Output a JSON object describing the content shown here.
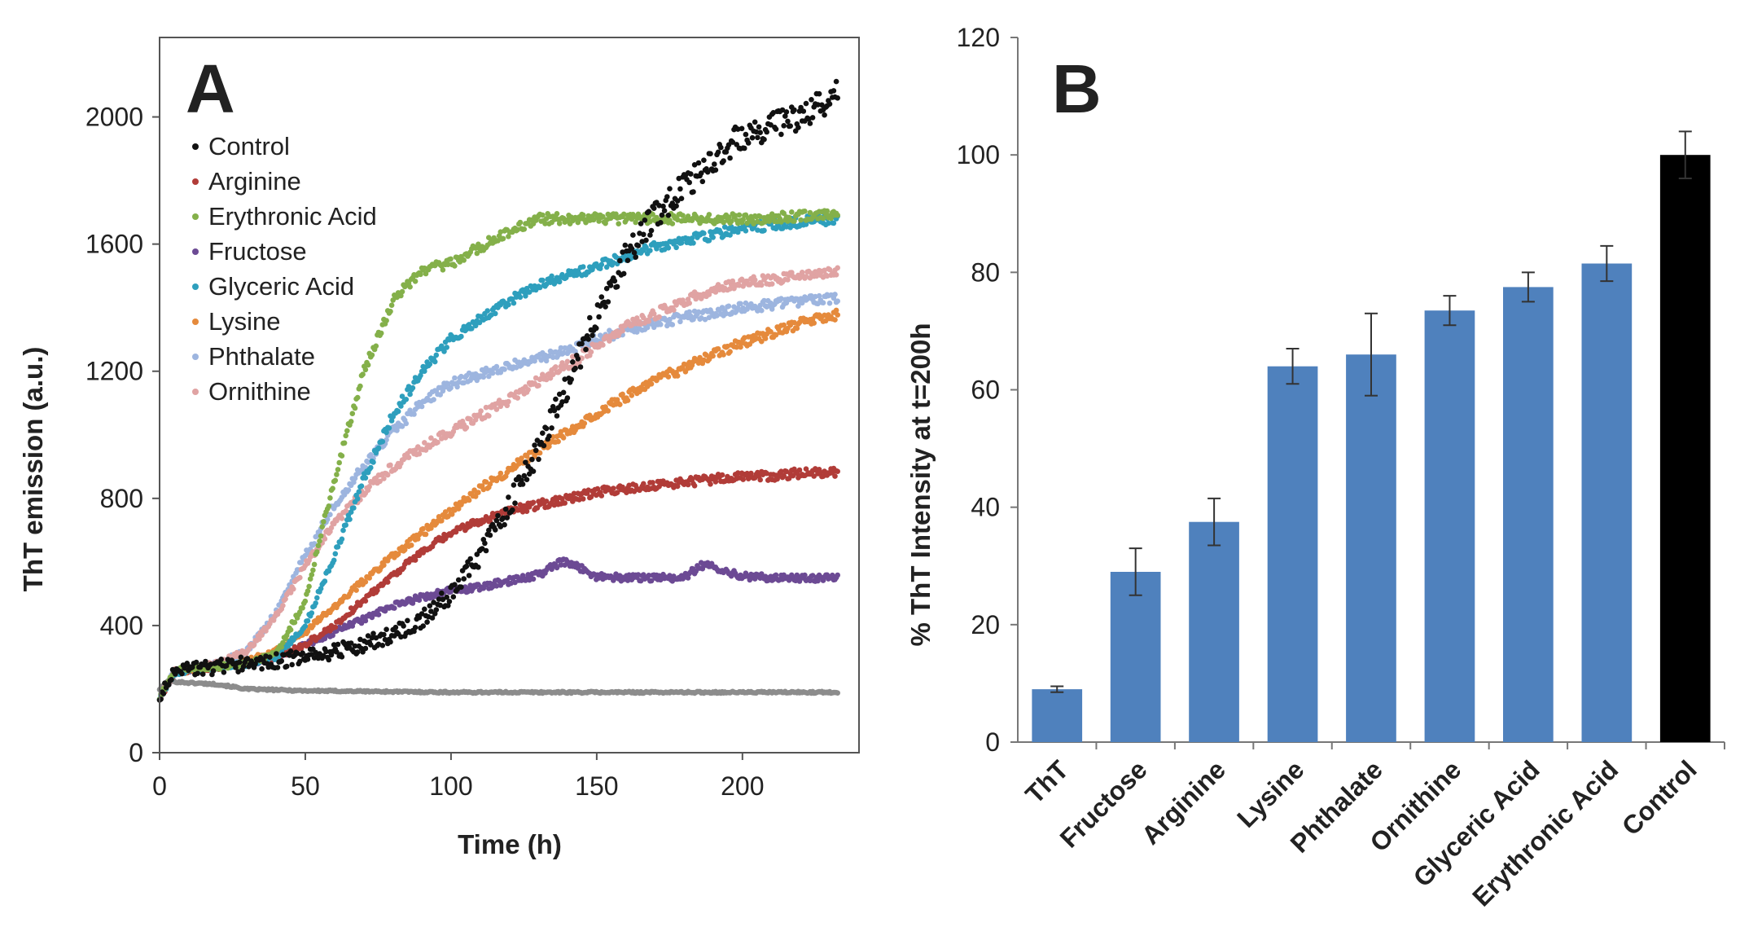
{
  "chart_data": [
    {
      "panel": "A",
      "type": "scatter",
      "panel_label": "A",
      "xlabel": "Time (h)",
      "ylabel": "ThT emission (a.u.)",
      "xlim": [
        0,
        240
      ],
      "ylim": [
        0,
        2250
      ],
      "xticks": [
        0,
        50,
        100,
        150,
        200
      ],
      "yticks": [
        0,
        400,
        800,
        1200,
        1600,
        2000
      ],
      "legend_position": "top-left",
      "series": [
        {
          "name": "Control",
          "color": "#111111",
          "x": [
            0,
            5,
            10,
            20,
            30,
            40,
            50,
            60,
            70,
            80,
            90,
            100,
            110,
            120,
            130,
            140,
            150,
            160,
            170,
            180,
            190,
            200,
            210,
            220,
            230,
            233
          ],
          "y": [
            170,
            250,
            260,
            270,
            280,
            290,
            300,
            320,
            340,
            370,
            420,
            500,
            620,
            780,
            950,
            1150,
            1380,
            1560,
            1690,
            1780,
            1870,
            1940,
            1970,
            2000,
            2060,
            2080
          ]
        },
        {
          "name": "Arginine",
          "color": "#b13c38",
          "x": [
            0,
            5,
            10,
            20,
            30,
            40,
            50,
            60,
            70,
            80,
            90,
            100,
            110,
            120,
            130,
            140,
            150,
            160,
            170,
            180,
            190,
            200,
            210,
            220,
            233
          ],
          "y": [
            170,
            250,
            260,
            270,
            280,
            300,
            340,
            400,
            480,
            560,
            630,
            690,
            730,
            760,
            780,
            800,
            820,
            830,
            840,
            850,
            860,
            870,
            870,
            880,
            880
          ]
        },
        {
          "name": "Erythronic Acid",
          "color": "#84b04a",
          "x": [
            0,
            5,
            10,
            20,
            30,
            40,
            50,
            60,
            70,
            80,
            90,
            100,
            110,
            120,
            130,
            140,
            150,
            160,
            170,
            180,
            190,
            200,
            210,
            220,
            233
          ],
          "y": [
            170,
            260,
            265,
            270,
            280,
            310,
            480,
            860,
            1200,
            1420,
            1520,
            1540,
            1590,
            1640,
            1680,
            1680,
            1680,
            1680,
            1680,
            1680,
            1680,
            1680,
            1680,
            1690,
            1690
          ]
        },
        {
          "name": "Fructose",
          "color": "#6c4a94",
          "x": [
            0,
            5,
            10,
            20,
            30,
            40,
            50,
            60,
            70,
            80,
            90,
            100,
            110,
            120,
            130,
            138,
            145,
            150,
            160,
            170,
            180,
            186,
            192,
            200,
            210,
            220,
            233
          ],
          "y": [
            170,
            250,
            260,
            270,
            280,
            300,
            340,
            380,
            420,
            460,
            490,
            510,
            520,
            540,
            560,
            600,
            580,
            555,
            550,
            550,
            550,
            590,
            580,
            555,
            550,
            550,
            550
          ]
        },
        {
          "name": "Glyceric Acid",
          "color": "#2e9fbd",
          "x": [
            0,
            5,
            10,
            20,
            30,
            40,
            50,
            60,
            70,
            80,
            90,
            100,
            110,
            120,
            130,
            140,
            150,
            160,
            170,
            180,
            190,
            200,
            210,
            220,
            233
          ],
          "y": [
            170,
            250,
            260,
            270,
            280,
            300,
            400,
            620,
            860,
            1060,
            1200,
            1300,
            1370,
            1420,
            1470,
            1500,
            1530,
            1560,
            1590,
            1610,
            1630,
            1650,
            1660,
            1670,
            1680
          ]
        },
        {
          "name": "Lysine",
          "color": "#e58a3c",
          "x": [
            0,
            5,
            10,
            20,
            30,
            40,
            50,
            60,
            70,
            80,
            90,
            100,
            110,
            120,
            130,
            140,
            150,
            160,
            170,
            180,
            190,
            200,
            210,
            220,
            233
          ],
          "y": [
            170,
            250,
            260,
            270,
            290,
            320,
            380,
            460,
            540,
            620,
            690,
            760,
            830,
            890,
            950,
            1010,
            1070,
            1120,
            1170,
            1210,
            1250,
            1290,
            1320,
            1350,
            1380
          ]
        },
        {
          "name": "Phthalate",
          "color": "#9db5df",
          "x": [
            0,
            5,
            10,
            20,
            30,
            40,
            50,
            60,
            70,
            80,
            90,
            100,
            110,
            120,
            130,
            140,
            150,
            160,
            170,
            180,
            190,
            200,
            210,
            220,
            233
          ],
          "y": [
            170,
            255,
            265,
            280,
            320,
            440,
            620,
            780,
            900,
            1010,
            1100,
            1160,
            1190,
            1220,
            1240,
            1270,
            1300,
            1330,
            1350,
            1370,
            1380,
            1400,
            1410,
            1420,
            1430
          ]
        },
        {
          "name": "Ornithine",
          "color": "#e0a3a3",
          "x": [
            0,
            5,
            10,
            20,
            30,
            40,
            50,
            60,
            70,
            80,
            90,
            100,
            110,
            120,
            130,
            140,
            150,
            160,
            170,
            180,
            190,
            200,
            210,
            220,
            233
          ],
          "y": [
            170,
            255,
            265,
            280,
            320,
            430,
            590,
            720,
            820,
            900,
            960,
            1010,
            1060,
            1110,
            1170,
            1220,
            1280,
            1340,
            1380,
            1420,
            1460,
            1480,
            1490,
            1500,
            1510
          ]
        },
        {
          "name": "ThT",
          "color": "#8c8c8c",
          "in_legend": false,
          "x": [
            0,
            3,
            10,
            20,
            30,
            50,
            100,
            150,
            200,
            233
          ],
          "y": [
            200,
            225,
            220,
            215,
            200,
            195,
            190,
            190,
            190,
            190
          ]
        }
      ]
    },
    {
      "panel": "B",
      "type": "bar",
      "panel_label": "B",
      "ylabel": "% ThT Intensity at t=200h",
      "ylim": [
        0,
        120
      ],
      "yticks": [
        0,
        20,
        40,
        60,
        80,
        100,
        120
      ],
      "categories": [
        "ThT",
        "Fructose",
        "Arginine",
        "Lysine",
        "Phthalate",
        "Ornithine",
        "Glyceric Acid",
        "Erythronic Acid",
        "Control"
      ],
      "values": [
        9,
        29,
        37.5,
        64,
        66,
        73.5,
        77.5,
        81.5,
        100
      ],
      "errors": [
        0.5,
        4,
        4,
        3,
        7,
        2.5,
        2.5,
        3,
        4
      ],
      "colors": [
        "#4f81bd",
        "#4f81bd",
        "#4f81bd",
        "#4f81bd",
        "#4f81bd",
        "#4f81bd",
        "#4f81bd",
        "#4f81bd",
        "#000000"
      ]
    }
  ]
}
